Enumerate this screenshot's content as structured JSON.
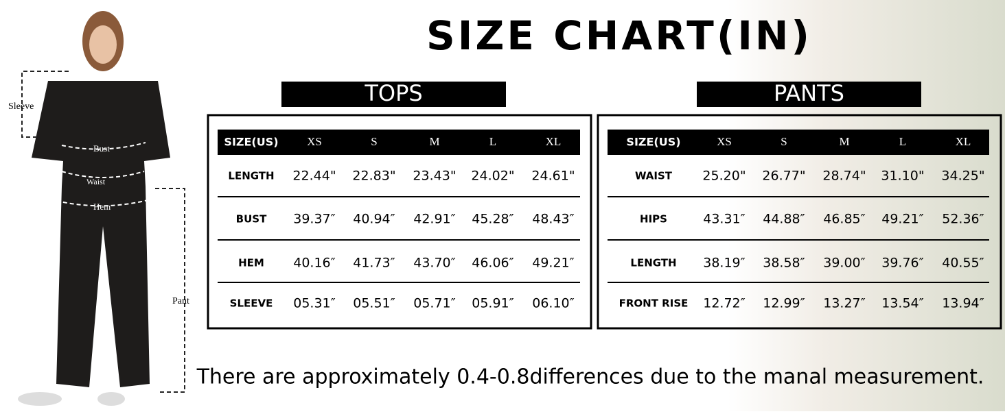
{
  "title": "SIZE CHART(IN)",
  "figure_labels": {
    "sleeve": "Sleeve",
    "bust": "Bust",
    "waist": "Waist",
    "hem": "Hem",
    "pant": "Pant"
  },
  "tables": [
    {
      "title": "TOPS",
      "header": [
        "SIZE(US)",
        "XS",
        "S",
        "M",
        "L",
        "XL"
      ],
      "rows": [
        [
          "LENGTH",
          "22.44\"",
          "22.83\"",
          "23.43\"",
          "24.02\"",
          "24.61\""
        ],
        [
          "BUST",
          "39.37″",
          "40.94″",
          "42.91″",
          "45.28″",
          "48.43″"
        ],
        [
          "HEM",
          "40.16″",
          "41.73″",
          "43.70″",
          "46.06″",
          "49.21″"
        ],
        [
          "SLEEVE",
          "05.31″",
          "05.51″",
          "05.71″",
          "05.91″",
          "06.10″"
        ]
      ]
    },
    {
      "title": "PANTS",
      "header": [
        "SIZE(US)",
        "XS",
        "S",
        "M",
        "L",
        "XL"
      ],
      "rows": [
        [
          "WAIST",
          "25.20\"",
          "26.77\"",
          "28.74\"",
          "31.10\"",
          "34.25\""
        ],
        [
          "HIPS",
          "43.31″",
          "44.88″",
          "46.85″",
          "49.21″",
          "52.36″"
        ],
        [
          "LENGTH",
          "38.19″",
          "38.58″",
          "39.00″",
          "39.76″",
          "40.55″"
        ],
        [
          "FRONT RISE",
          "12.72″",
          "12.99″",
          "13.27″",
          "13.54″",
          "13.94″"
        ]
      ]
    }
  ],
  "note": "There are approximately 0.4-0.8differences due to the manal  measurement."
}
